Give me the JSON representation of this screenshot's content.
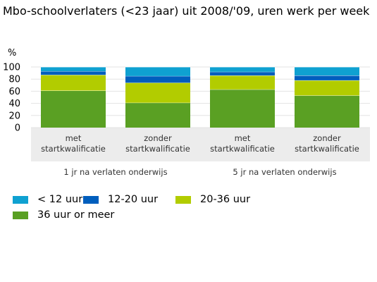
{
  "chart_data": {
    "type": "bar",
    "stacked": true,
    "title": "Mbo-schoolverlaters (<23 jaar) uit 2008/'09, uren werk per week",
    "ylabel": "%",
    "ylim": [
      0,
      100
    ],
    "yticks": [
      0,
      20,
      40,
      60,
      80,
      100
    ],
    "grid": true,
    "legend_position": "bottom",
    "categories": [
      {
        "label_lines": [
          "met",
          "startkwalificatie"
        ],
        "group": 0
      },
      {
        "label_lines": [
          "zonder",
          "startkwalificatie"
        ],
        "group": 0
      },
      {
        "label_lines": [
          "met",
          "startkwalificatie"
        ],
        "group": 1
      },
      {
        "label_lines": [
          "zonder",
          "startkwalificatie"
        ],
        "group": 1
      }
    ],
    "groups": [
      "1 jr na verlaten onderwijs",
      "5 jr na verlaten onderwijs"
    ],
    "series": [
      {
        "name": "36 uur or meer",
        "color": "#5aa023",
        "values": [
          61,
          41,
          63,
          53
        ]
      },
      {
        "name": "20-36 uur",
        "color": "#b2cc00",
        "values": [
          26,
          33,
          23,
          25
        ]
      },
      {
        "name": "12-20 uur",
        "color": "#005ebd",
        "values": [
          6,
          11,
          6,
          8
        ]
      },
      {
        "name": "< 12 uur",
        "color": "#0fa1d1",
        "values": [
          7,
          15,
          8,
          14
        ]
      }
    ],
    "legend_order": [
      "< 12 uur",
      "12-20 uur",
      "20-36 uur",
      "36 uur or meer"
    ]
  }
}
